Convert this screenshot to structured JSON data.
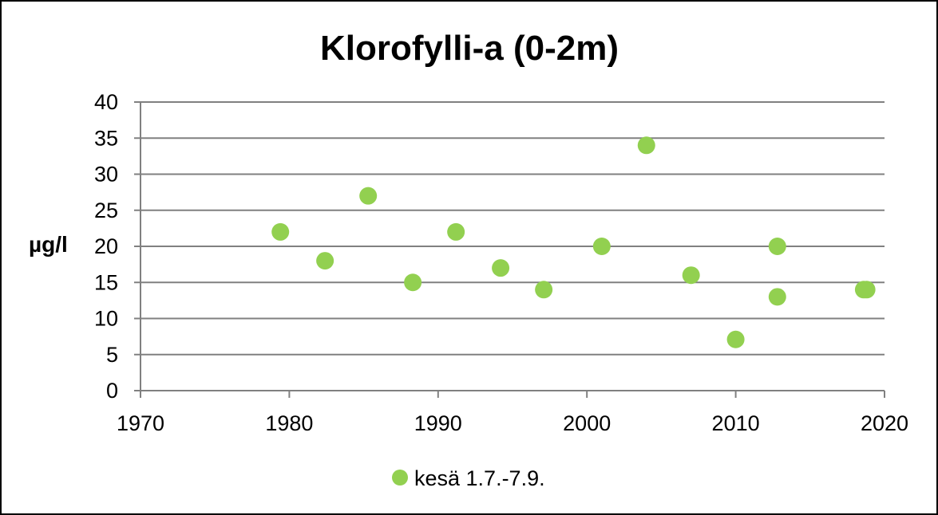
{
  "chart_data": {
    "type": "scatter",
    "title": "Klorofylli-a (0-2m)",
    "xlabel": "",
    "ylabel": "µg/l",
    "xlim": [
      1970,
      2020
    ],
    "ylim": [
      0,
      40
    ],
    "x_ticks": [
      "1970",
      "1980",
      "1990",
      "2000",
      "2010",
      "2020"
    ],
    "y_ticks": [
      "0",
      "5",
      "10",
      "15",
      "20",
      "25",
      "30",
      "35",
      "40"
    ],
    "grid": "horizontal",
    "legend_position": "bottom",
    "marker_color": "#92d050",
    "series": [
      {
        "name": "kesä 1.7.-7.9.",
        "points": [
          {
            "x": 1979.4,
            "y": 22
          },
          {
            "x": 1982.4,
            "y": 18
          },
          {
            "x": 1985.3,
            "y": 27
          },
          {
            "x": 1988.3,
            "y": 15
          },
          {
            "x": 1991.2,
            "y": 22
          },
          {
            "x": 1994.2,
            "y": 17
          },
          {
            "x": 1997.1,
            "y": 14
          },
          {
            "x": 2001.0,
            "y": 20
          },
          {
            "x": 2004.0,
            "y": 34
          },
          {
            "x": 2007.0,
            "y": 16
          },
          {
            "x": 2010.0,
            "y": 7.1
          },
          {
            "x": 2012.8,
            "y": 20
          },
          {
            "x": 2012.8,
            "y": 13
          },
          {
            "x": 2018.6,
            "y": 14
          },
          {
            "x": 2018.8,
            "y": 14
          }
        ]
      }
    ]
  }
}
